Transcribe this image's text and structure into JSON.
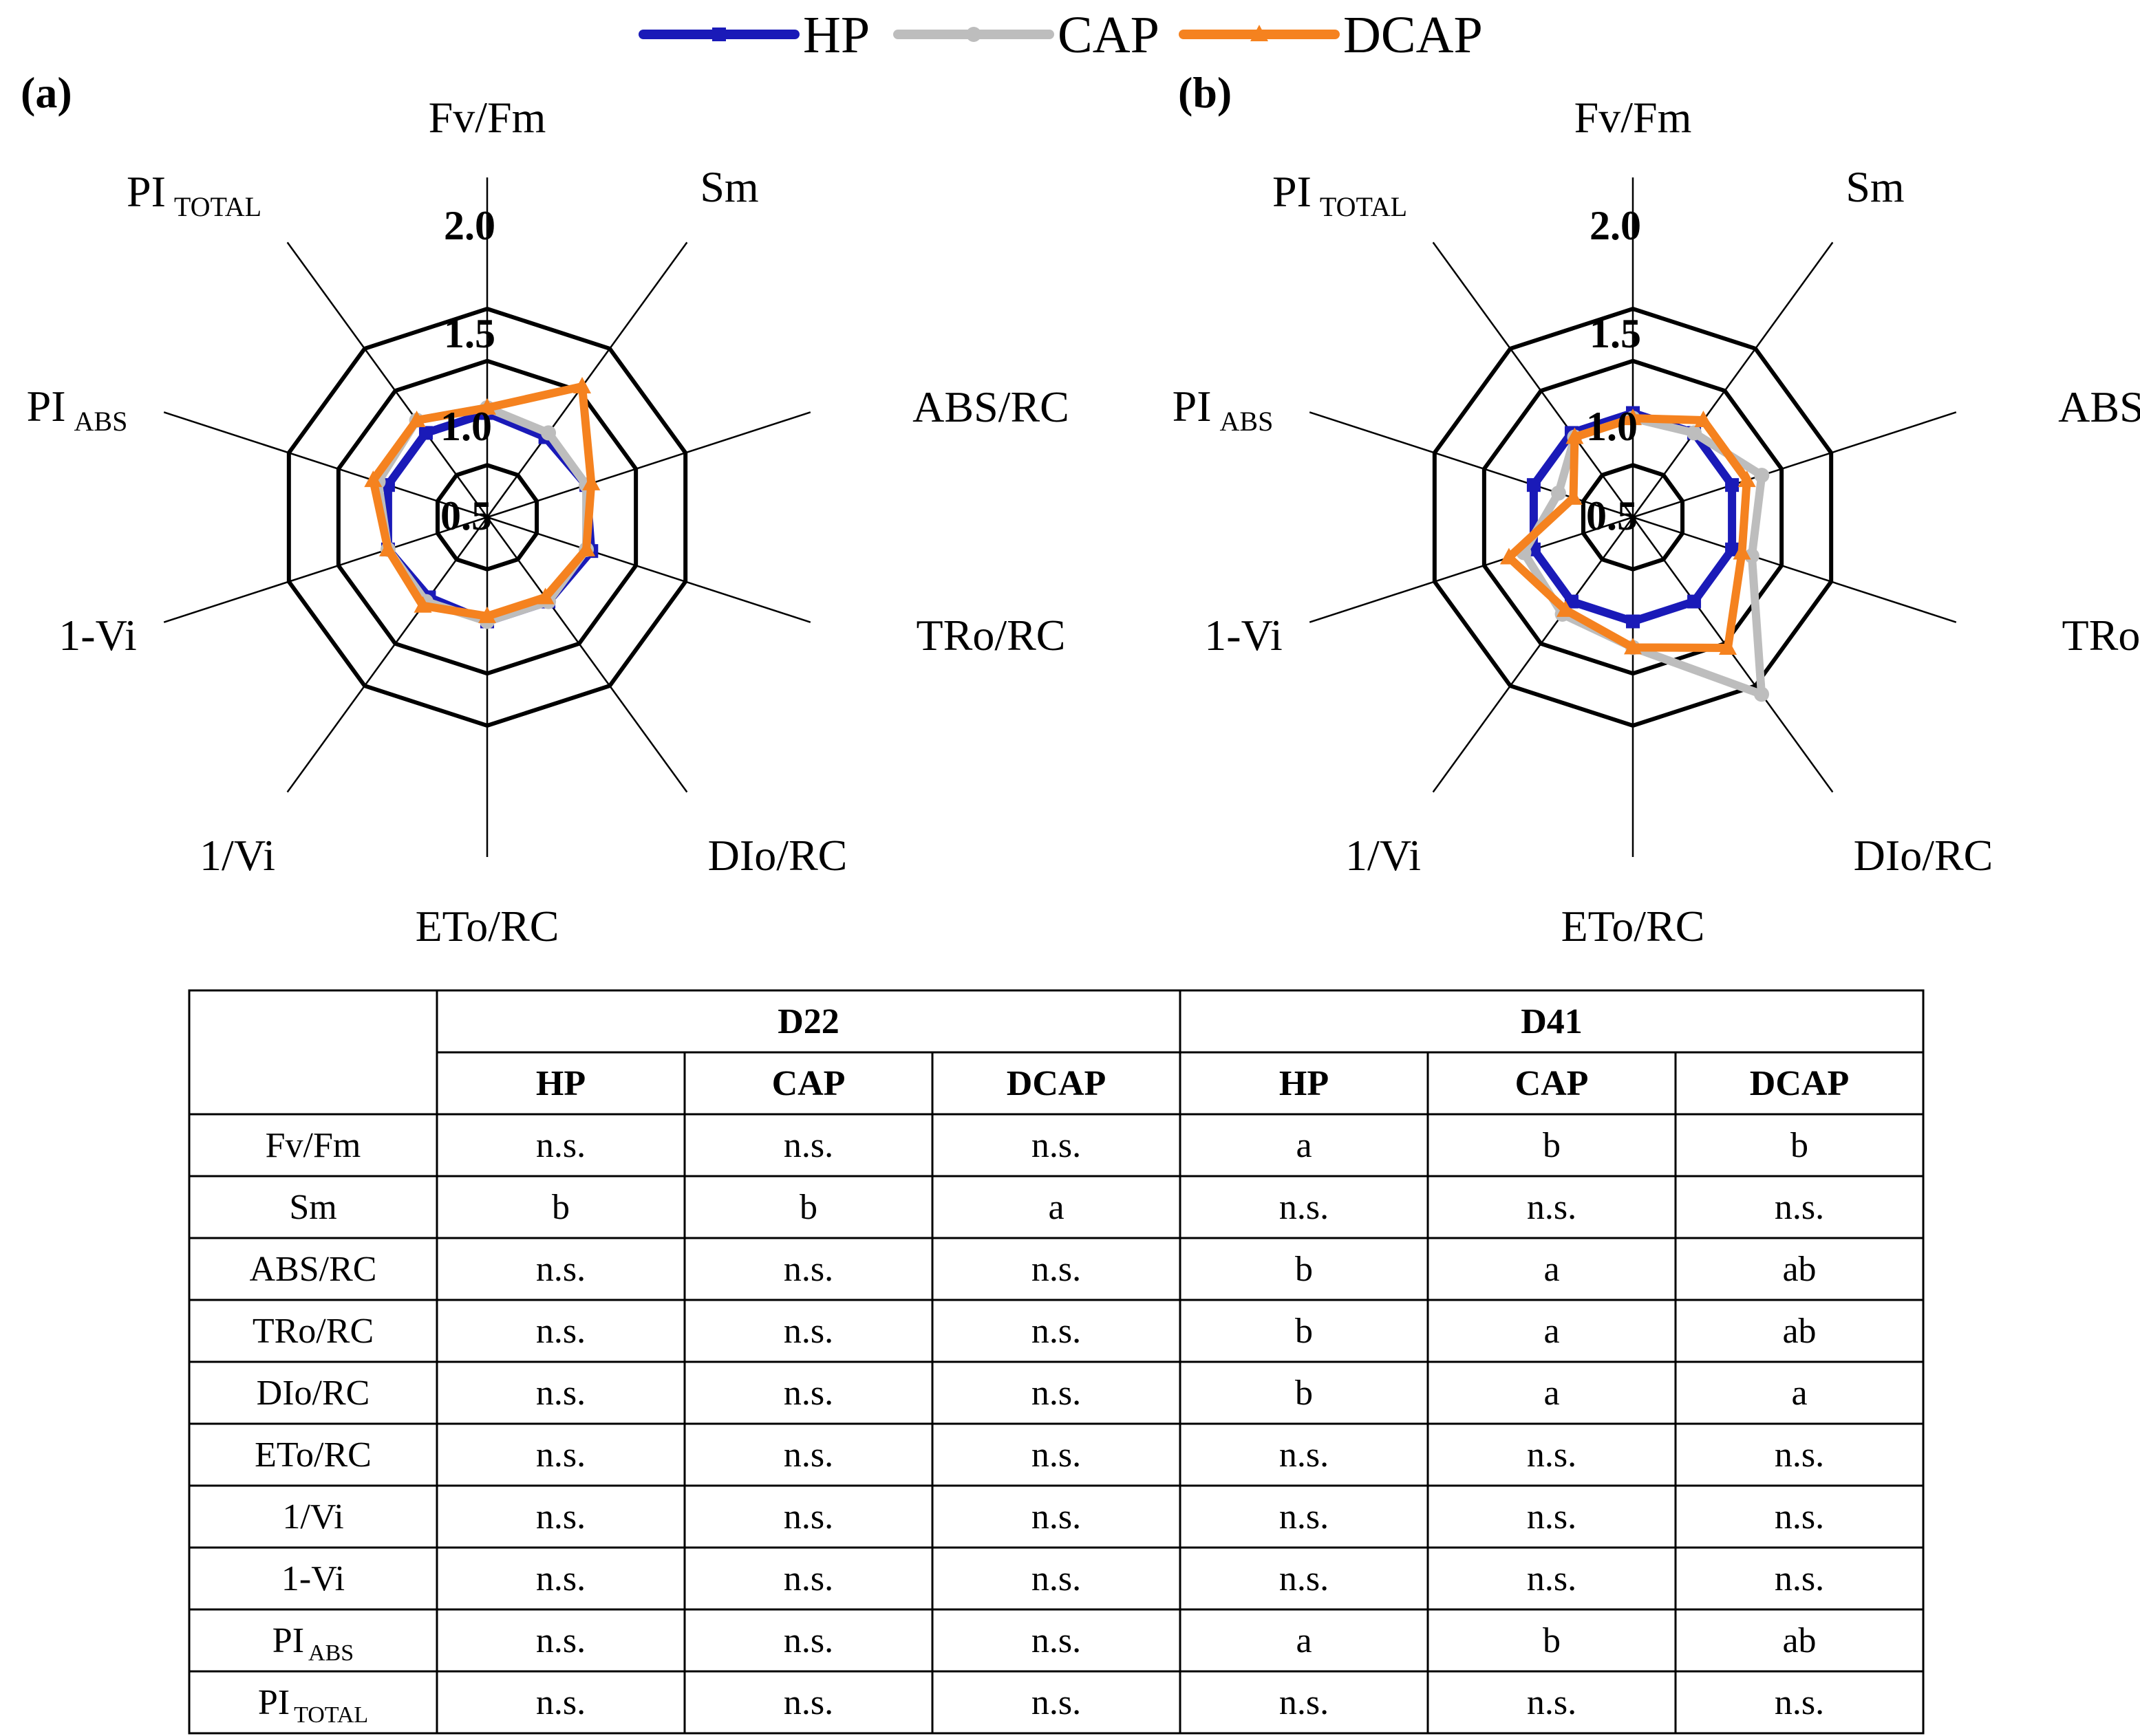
{
  "legend": [
    {
      "name": "HP",
      "color": "#1a1ab8",
      "marker": "square"
    },
    {
      "name": "CAP",
      "color": "#bdbdbd",
      "marker": "circle"
    },
    {
      "name": "DCAP",
      "color": "#f5821f",
      "marker": "triangle"
    }
  ],
  "chart_data": [
    {
      "type": "radar",
      "panel_label": "(a)",
      "axes": [
        {
          "label": "Fv/Fm",
          "sub": ""
        },
        {
          "label": "Sm",
          "sub": ""
        },
        {
          "label": "ABS/RC",
          "sub": ""
        },
        {
          "label": "TRo/RC",
          "sub": ""
        },
        {
          "label": "DIo/RC",
          "sub": ""
        },
        {
          "label": "ETo/RC",
          "sub": ""
        },
        {
          "label": "1/Vi",
          "sub": ""
        },
        {
          "label": "1-Vi",
          "sub": ""
        },
        {
          "label": "PI",
          "sub": "ABS"
        },
        {
          "label": "PI",
          "sub": "TOTAL"
        }
      ],
      "rlim": [
        0.5,
        2.0
      ],
      "rticks": [
        "0.5",
        "1.0",
        "1.5",
        "2.0"
      ],
      "series": [
        {
          "name": "HP",
          "values": [
            1.0,
            0.95,
            1.0,
            1.05,
            1.0,
            1.0,
            0.95,
            1.0,
            1.0,
            1.0
          ]
        },
        {
          "name": "CAP",
          "values": [
            1.05,
            1.0,
            1.0,
            1.0,
            1.0,
            1.0,
            1.0,
            1.0,
            1.1,
            1.15
          ]
        },
        {
          "name": "DCAP",
          "values": [
            1.05,
            1.55,
            1.05,
            1.0,
            0.95,
            0.95,
            1.05,
            1.0,
            1.15,
            1.15
          ]
        }
      ]
    },
    {
      "type": "radar",
      "panel_label": "(b)",
      "axes": [
        {
          "label": "Fv/Fm",
          "sub": ""
        },
        {
          "label": "Sm",
          "sub": ""
        },
        {
          "label": "ABS/RC",
          "sub": ""
        },
        {
          "label": "TRo/RC",
          "sub": ""
        },
        {
          "label": "DIo/RC",
          "sub": ""
        },
        {
          "label": "ETo/RC",
          "sub": ""
        },
        {
          "label": "1/Vi",
          "sub": ""
        },
        {
          "label": "1-Vi",
          "sub": ""
        },
        {
          "label": "PI",
          "sub": "ABS"
        },
        {
          "label": "PI",
          "sub": "TOTAL"
        }
      ],
      "rlim": [
        0.5,
        2.0
      ],
      "rticks": [
        "0.5",
        "1.0",
        "1.5",
        "2.0"
      ],
      "series": [
        {
          "name": "HP",
          "values": [
            1.0,
            1.0,
            1.0,
            1.0,
            1.0,
            1.0,
            1.0,
            1.0,
            1.0,
            1.0
          ]
        },
        {
          "name": "CAP",
          "values": [
            0.95,
            1.0,
            1.3,
            1.2,
            2.1,
            1.25,
            1.15,
            1.1,
            0.75,
            0.95
          ]
        },
        {
          "name": "DCAP",
          "values": [
            0.95,
            1.15,
            1.15,
            1.1,
            1.55,
            1.25,
            1.1,
            1.25,
            0.6,
            0.95
          ]
        }
      ]
    }
  ],
  "table": {
    "group_headers": [
      "D22",
      "D41"
    ],
    "sub_headers": [
      "HP",
      "CAP",
      "DCAP",
      "HP",
      "CAP",
      "DCAP"
    ],
    "rows": [
      {
        "label": "Fv/Fm",
        "sub": "",
        "cells": [
          "n.s.",
          "n.s.",
          "n.s.",
          "a",
          "b",
          "b"
        ]
      },
      {
        "label": "Sm",
        "sub": "",
        "cells": [
          "b",
          "b",
          "a",
          "n.s.",
          "n.s.",
          "n.s."
        ]
      },
      {
        "label": "ABS/RC",
        "sub": "",
        "cells": [
          "n.s.",
          "n.s.",
          "n.s.",
          "b",
          "a",
          "ab"
        ]
      },
      {
        "label": "TRo/RC",
        "sub": "",
        "cells": [
          "n.s.",
          "n.s.",
          "n.s.",
          "b",
          "a",
          "ab"
        ]
      },
      {
        "label": "DIo/RC",
        "sub": "",
        "cells": [
          "n.s.",
          "n.s.",
          "n.s.",
          "b",
          "a",
          "a"
        ]
      },
      {
        "label": "ETo/RC",
        "sub": "",
        "cells": [
          "n.s.",
          "n.s.",
          "n.s.",
          "n.s.",
          "n.s.",
          "n.s."
        ]
      },
      {
        "label": "1/Vi",
        "sub": "",
        "cells": [
          "n.s.",
          "n.s.",
          "n.s.",
          "n.s.",
          "n.s.",
          "n.s."
        ]
      },
      {
        "label": "1-Vi",
        "sub": "",
        "cells": [
          "n.s.",
          "n.s.",
          "n.s.",
          "n.s.",
          "n.s.",
          "n.s."
        ]
      },
      {
        "label": "PI",
        "sub": "ABS",
        "cells": [
          "n.s.",
          "n.s.",
          "n.s.",
          "a",
          "b",
          "ab"
        ]
      },
      {
        "label": "PI",
        "sub": "TOTAL",
        "cells": [
          "n.s.",
          "n.s.",
          "n.s.",
          "n.s.",
          "n.s.",
          "n.s."
        ]
      }
    ]
  }
}
